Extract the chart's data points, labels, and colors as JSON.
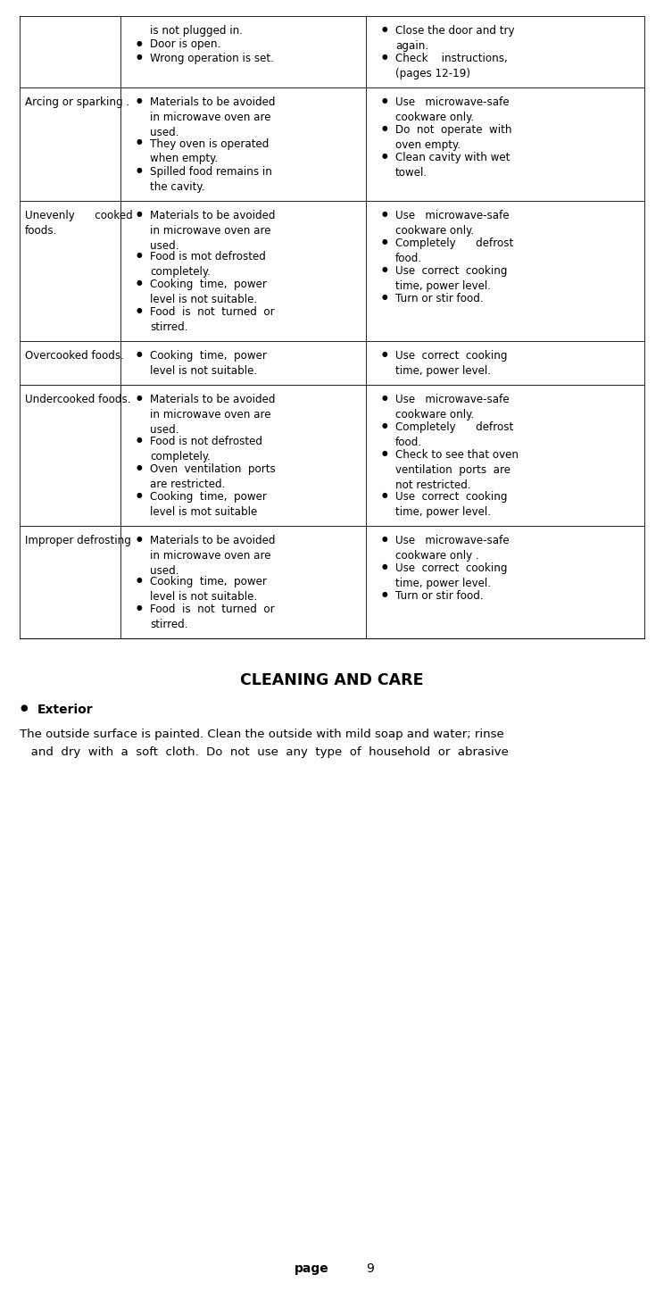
{
  "bg_color": "#ffffff",
  "text_color": "#000000",
  "page_width": 7.44,
  "page_height": 14.46,
  "table": {
    "rows": [
      {
        "col0": "",
        "col0_plain": true,
        "col1_first_plain": "is not plugged in.",
        "col1_bullets": [
          "Door is open.",
          "Wrong operation is set."
        ],
        "col2_bullets": [
          "Close the door and try\nagain.",
          "Check    instructions,\n(pages 12-19)"
        ]
      },
      {
        "col0": "Arcing or sparking .",
        "col0_plain": true,
        "col1_first_plain": null,
        "col1_bullets": [
          "Materials to be avoided\nin microwave oven are\nused.",
          "They oven is operated\nwhen empty.",
          "Spilled food remains in\nthe cavity."
        ],
        "col2_bullets": [
          "Use   microwave-safe\ncookware only.",
          "Do  not  operate  with\noven empty.",
          "Clean cavity with wet\ntowel."
        ]
      },
      {
        "col0": "Unevenly      cooked\nfoods.",
        "col0_plain": true,
        "col1_first_plain": null,
        "col1_bullets": [
          "Materials to be avoided\nin microwave oven are\nused.",
          "Food is mot defrosted\ncompletely.",
          "Cooking  time,  power\nlevel is not suitable.",
          "Food  is  not  turned  or\nstirred."
        ],
        "col2_bullets": [
          "Use   microwave-safe\ncookware only.",
          "Completely      defrost\nfood.",
          "Use  correct  cooking\ntime, power level.",
          "Turn or stir food."
        ]
      },
      {
        "col0": "Overcooked foods.",
        "col0_plain": true,
        "col1_first_plain": null,
        "col1_bullets": [
          "Cooking  time,  power\nlevel is not suitable."
        ],
        "col2_bullets": [
          "Use  correct  cooking\ntime, power level."
        ]
      },
      {
        "col0": "Undercooked foods.",
        "col0_plain": true,
        "col1_first_plain": null,
        "col1_bullets": [
          "Materials to be avoided\nin microwave oven are\nused.",
          "Food is not defrosted\ncompletely.",
          "Oven  ventilation  ports\nare restricted.",
          "Cooking  time,  power\nlevel is mot suitable"
        ],
        "col2_bullets": [
          "Use   microwave-safe\ncookware only.",
          "Completely      defrost\nfood.",
          "Check to see that oven\nventilation  ports  are\nnot restricted.",
          "Use  correct  cooking\ntime, power level."
        ]
      },
      {
        "col0": "Improper defrosting",
        "col0_plain": true,
        "col1_first_plain": null,
        "col1_bullets": [
          "Materials to be avoided\nin microwave oven are\nused.",
          "Cooking  time,  power\nlevel is not suitable.",
          "Food  is  not  turned  or\nstirred."
        ],
        "col2_bullets": [
          "Use   microwave-safe\ncookware only .",
          "Use  correct  cooking\ntime, power level.",
          "Turn or stir food."
        ]
      }
    ]
  },
  "cleaning_title": "CLEANING AND CARE",
  "exterior_label": "Exterior",
  "exterior_line1": "The outside surface is painted. Clean the outside with mild soap and water; rinse",
  "exterior_line2": "   and  dry  with  a  soft  cloth.  Do  not  use  any  type  of  household  or  abrasive",
  "page_label": "page",
  "page_number": "9"
}
